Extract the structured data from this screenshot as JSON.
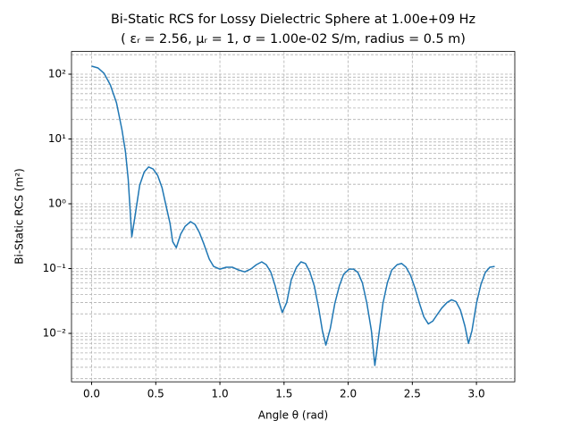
{
  "chart_data": {
    "type": "line",
    "title": "Bi-Static RCS for Lossy Dielectric Sphere at 1.00e+09 Hz",
    "subtitle": "( εᵣ = 2.56, μᵣ = 1, σ = 1.00e-02 S/m, radius = 0.5 m)",
    "x_label": "Angle θ (rad)",
    "y_label": "Bi-Static RCS (m²)",
    "x": [
      0,
      0.049,
      0.097,
      0.146,
      0.194,
      0.236,
      0.264,
      0.285,
      0.313,
      0.34,
      0.375,
      0.41,
      0.444,
      0.479,
      0.514,
      0.549,
      0.583,
      0.611,
      0.632,
      0.66,
      0.694,
      0.729,
      0.771,
      0.806,
      0.84,
      0.875,
      0.917,
      0.951,
      1.0,
      1.049,
      1.097,
      1.146,
      1.194,
      1.243,
      1.285,
      1.326,
      1.361,
      1.396,
      1.431,
      1.465,
      1.486,
      1.521,
      1.556,
      1.597,
      1.632,
      1.667,
      1.701,
      1.736,
      1.771,
      1.799,
      1.826,
      1.861,
      1.896,
      1.931,
      1.965,
      2.007,
      2.042,
      2.076,
      2.111,
      2.146,
      2.181,
      2.208,
      2.236,
      2.271,
      2.306,
      2.34,
      2.382,
      2.417,
      2.451,
      2.486,
      2.521,
      2.556,
      2.59,
      2.625,
      2.66,
      2.694,
      2.729,
      2.771,
      2.806,
      2.84,
      2.875,
      2.91,
      2.938,
      2.965,
      3.0,
      3.035,
      3.069,
      3.104,
      3.142
    ],
    "series": [
      {
        "name": "RCS",
        "color": "#1f77b4",
        "values": [
          133,
          125,
          103,
          68,
          36,
          14,
          6.3,
          2.4,
          0.31,
          0.68,
          1.95,
          3.1,
          3.7,
          3.45,
          2.76,
          1.77,
          0.88,
          0.5,
          0.26,
          0.21,
          0.34,
          0.45,
          0.53,
          0.48,
          0.36,
          0.24,
          0.14,
          0.108,
          0.098,
          0.105,
          0.105,
          0.095,
          0.089,
          0.099,
          0.115,
          0.127,
          0.115,
          0.089,
          0.054,
          0.029,
          0.021,
          0.03,
          0.067,
          0.105,
          0.127,
          0.12,
          0.089,
          0.054,
          0.024,
          0.011,
          0.0066,
          0.012,
          0.029,
          0.054,
          0.082,
          0.098,
          0.098,
          0.087,
          0.06,
          0.029,
          0.011,
          0.0032,
          0.0086,
          0.029,
          0.061,
          0.095,
          0.115,
          0.12,
          0.105,
          0.079,
          0.05,
          0.029,
          0.018,
          0.014,
          0.0155,
          0.0195,
          0.0245,
          0.03,
          0.033,
          0.031,
          0.023,
          0.013,
          0.007,
          0.011,
          0.029,
          0.057,
          0.087,
          0.105,
          0.108
        ]
      }
    ],
    "xlim": [
      -0.157,
      3.299
    ],
    "xticks": [
      {
        "value": 0,
        "label": "0.0"
      },
      0.5,
      {
        "value": 1,
        "label": "1.0"
      },
      1.5,
      {
        "value": 2,
        "label": "2.0"
      },
      2.5,
      {
        "value": 3,
        "label": "3.0"
      }
    ],
    "ylim": [
      0.00179,
      224
    ],
    "yticks": [
      {
        "value": 0.01,
        "label": "10⁻²"
      },
      {
        "value": 0.1,
        "label": "10⁻¹"
      },
      {
        "value": 1,
        "label": "10⁰"
      },
      {
        "value": 10,
        "label": "10¹"
      },
      {
        "value": 100,
        "label": "10²"
      }
    ],
    "log_y": true,
    "grid": "both"
  }
}
